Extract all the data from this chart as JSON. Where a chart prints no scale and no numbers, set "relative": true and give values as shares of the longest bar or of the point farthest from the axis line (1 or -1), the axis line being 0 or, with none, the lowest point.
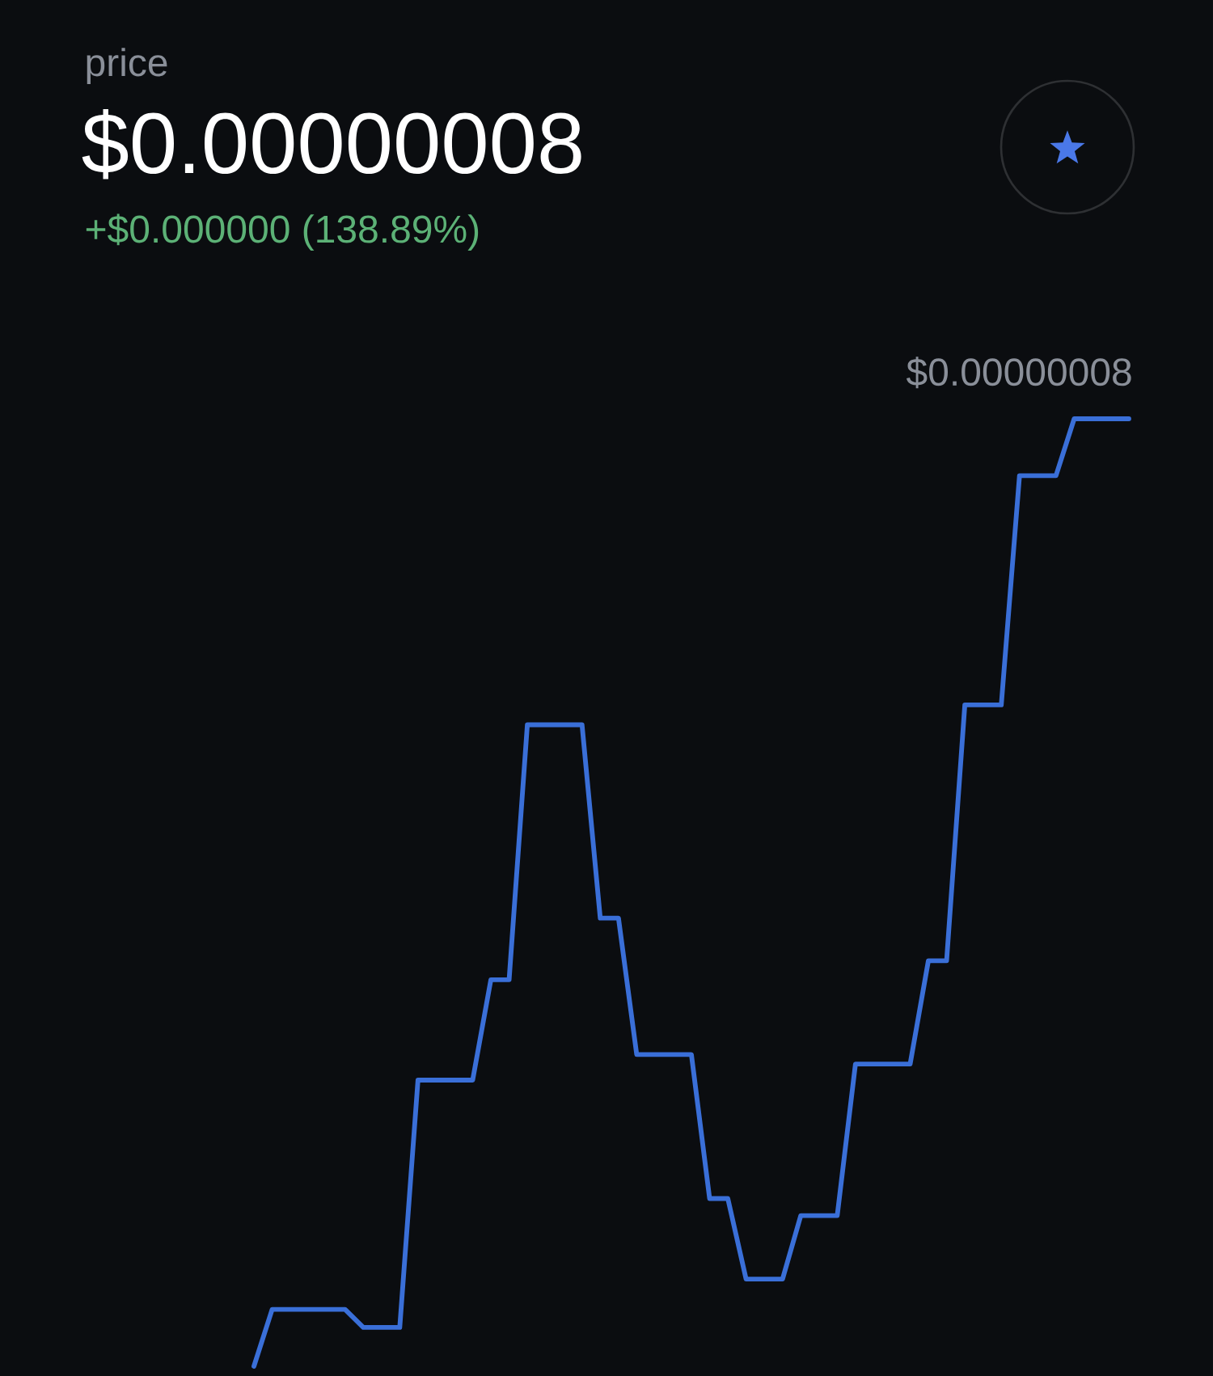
{
  "chart_data": {
    "type": "line",
    "title": "price",
    "subtitle": "$0.00000008",
    "annotations": [
      "+$0.000000 (138.89%)",
      "$0.00000008"
    ],
    "relative": true,
    "color": "#3a6fd8",
    "categories": [
      null,
      null,
      null,
      null,
      null,
      null,
      null,
      null,
      null,
      null,
      null,
      null,
      null,
      null,
      null,
      null,
      null,
      null,
      null,
      null,
      null,
      null,
      null,
      null,
      null,
      null,
      null,
      null,
      null,
      null,
      null,
      null,
      null,
      null,
      null,
      null,
      null,
      null,
      null,
      null,
      null,
      null,
      null,
      null,
      null,
      null,
      null,
      null,
      null
    ],
    "values": [
      0,
      0.06,
      0.06,
      0.06,
      0.06,
      0.06,
      0.041,
      0.041,
      0.041,
      0.302,
      0.302,
      0.302,
      0.302,
      0.408,
      0.408,
      0.677,
      0.677,
      0.677,
      0.677,
      0.473,
      0.473,
      0.329,
      0.329,
      0.329,
      0.329,
      0.177,
      0.177,
      0.092,
      0.092,
      0.092,
      0.159,
      0.159,
      0.159,
      0.319,
      0.319,
      0.319,
      0.319,
      0.428,
      0.428,
      0.698,
      0.698,
      0.698,
      0.94,
      0.94,
      0.94,
      1,
      1,
      1,
      1
    ]
  }
}
